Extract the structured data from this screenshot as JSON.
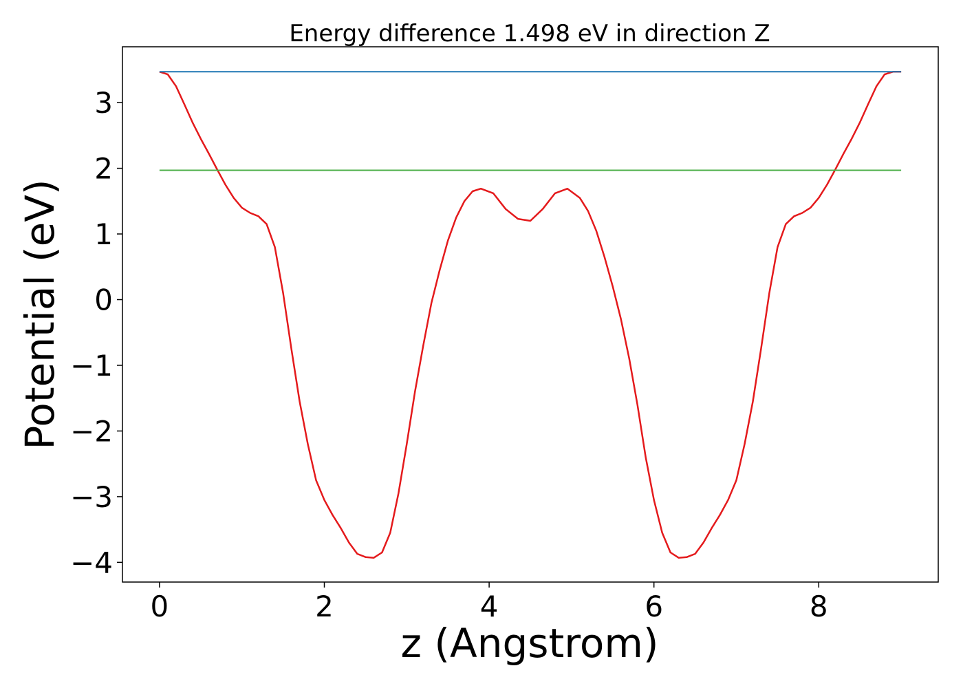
{
  "chart_data": {
    "type": "line",
    "title": "Energy difference 1.498 eV in direction Z",
    "xlabel": "z (Angstrom)",
    "ylabel": "Potential (eV)",
    "xlim": [
      -0.45,
      9.45
    ],
    "ylim": [
      -4.3,
      3.85
    ],
    "xticks": [
      0,
      2,
      4,
      6,
      8
    ],
    "xtick_labels": [
      "0",
      "2",
      "4",
      "6",
      "8"
    ],
    "yticks": [
      -4,
      -3,
      -2,
      -1,
      0,
      1,
      2,
      3
    ],
    "ytick_labels": [
      "−4",
      "−3",
      "−2",
      "−1",
      "0",
      "1",
      "2",
      "3"
    ],
    "grid": false,
    "series": [
      {
        "color": "#e41a1c",
        "x": [
          0,
          0.1,
          0.2,
          0.3,
          0.4,
          0.5,
          0.6,
          0.7,
          0.8,
          0.9,
          1.0,
          1.1,
          1.2,
          1.3,
          1.4,
          1.5,
          1.6,
          1.7,
          1.8,
          1.9,
          2.0,
          2.1,
          2.2,
          2.3,
          2.4,
          2.5,
          2.6,
          2.7,
          2.8,
          2.9,
          3.0,
          3.1,
          3.2,
          3.3,
          3.4,
          3.5,
          3.6,
          3.7,
          3.8,
          3.9,
          4.05,
          4.2,
          4.35,
          4.5,
          4.65,
          4.8,
          4.95,
          5.1,
          5.2,
          5.3,
          5.4,
          5.5,
          5.6,
          5.7,
          5.8,
          5.9,
          6.0,
          6.1,
          6.2,
          6.3,
          6.4,
          6.5,
          6.6,
          6.7,
          6.8,
          6.9,
          7.0,
          7.1,
          7.2,
          7.3,
          7.4,
          7.5,
          7.6,
          7.7,
          7.8,
          7.9,
          8.0,
          8.1,
          8.2,
          8.3,
          8.4,
          8.5,
          8.6,
          8.7,
          8.8,
          8.9,
          9.0
        ],
        "y": [
          3.47,
          3.43,
          3.25,
          2.98,
          2.7,
          2.45,
          2.22,
          1.98,
          1.75,
          1.55,
          1.4,
          1.32,
          1.27,
          1.15,
          0.8,
          0.1,
          -0.75,
          -1.55,
          -2.2,
          -2.75,
          -3.05,
          -3.28,
          -3.48,
          -3.7,
          -3.87,
          -3.92,
          -3.93,
          -3.85,
          -3.55,
          -2.95,
          -2.2,
          -1.4,
          -0.7,
          -0.05,
          0.45,
          0.9,
          1.25,
          1.5,
          1.65,
          1.69,
          1.62,
          1.38,
          1.23,
          1.2,
          1.38,
          1.62,
          1.69,
          1.55,
          1.35,
          1.05,
          0.65,
          0.2,
          -0.3,
          -0.9,
          -1.6,
          -2.4,
          -3.05,
          -3.55,
          -3.85,
          -3.93,
          -3.92,
          -3.87,
          -3.7,
          -3.48,
          -3.28,
          -3.05,
          -2.75,
          -2.2,
          -1.55,
          -0.75,
          0.1,
          0.8,
          1.15,
          1.27,
          1.32,
          1.4,
          1.55,
          1.75,
          1.98,
          2.22,
          2.45,
          2.7,
          2.98,
          3.25,
          3.43,
          3.47,
          3.47
        ]
      },
      {
        "color": "#1f77b4",
        "x": [
          0,
          9.0
        ],
        "y": [
          3.47,
          3.47
        ]
      },
      {
        "color": "#4daf4a",
        "x": [
          0,
          9.0
        ],
        "y": [
          1.97,
          1.97
        ]
      }
    ]
  }
}
